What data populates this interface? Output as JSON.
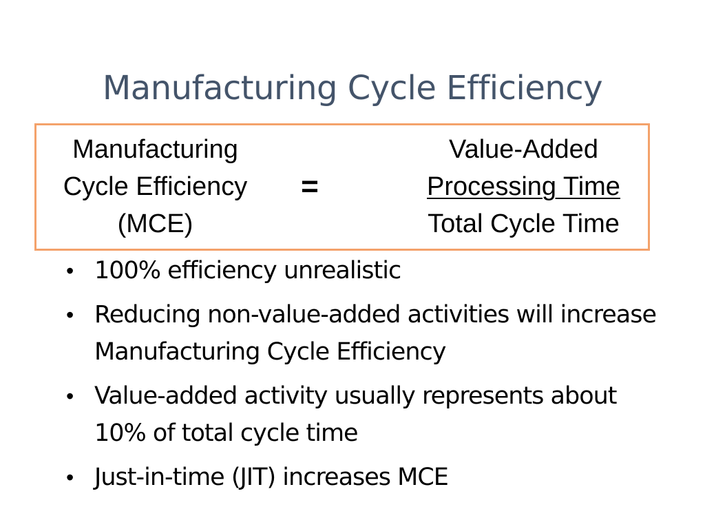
{
  "slide": {
    "title": "Manufacturing Cycle Efficiency",
    "formula": {
      "lhs": [
        "Manufacturing",
        "Cycle Efficiency",
        "(MCE)"
      ],
      "equals": "=",
      "numerator": [
        "Value-Added",
        "Processing Time"
      ],
      "denominator": "Total Cycle Time",
      "border_color": "#f4a26b"
    },
    "bullet_symbol": "•",
    "bullets": [
      "100% efficiency unrealistic",
      "Reducing non-value-added activities will increase Manufacturing Cycle Efficiency",
      "Value-added activity usually represents about 10% of total cycle time",
      "Just-in-time (JIT) increases MCE"
    ],
    "title_color": "#44546a"
  }
}
